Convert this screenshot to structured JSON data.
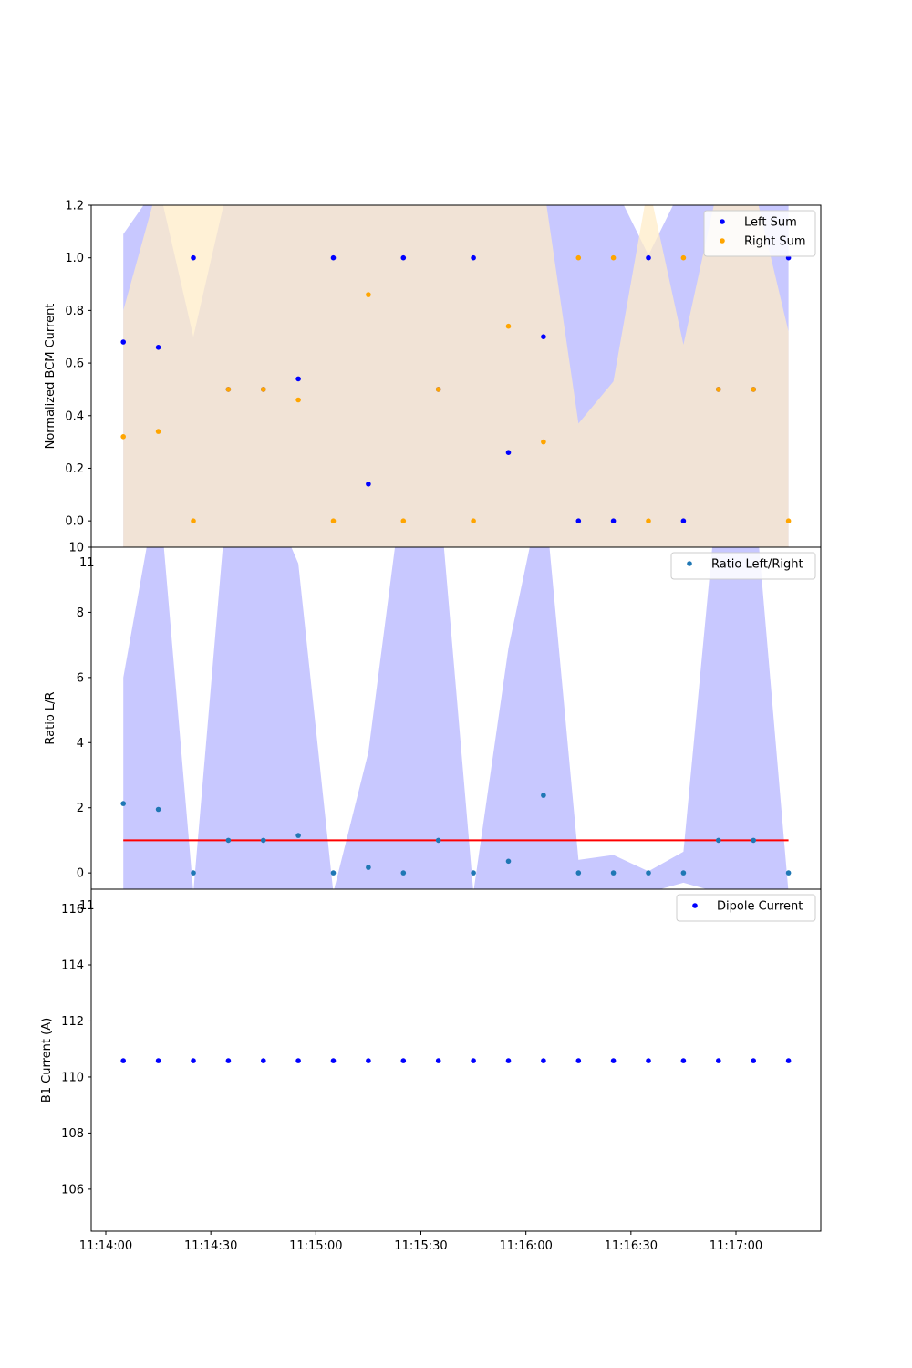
{
  "chart_data": [
    {
      "type": "scatter",
      "ylabel": "Normalized BCM Current",
      "ylim": [
        -0.1,
        1.2
      ],
      "yticks": [
        "0.0",
        "0.2",
        "0.4",
        "0.6",
        "0.8",
        "1.0",
        "1.2"
      ],
      "ytick_values": [
        0.0,
        0.2,
        0.4,
        0.6,
        0.8,
        1.0,
        1.2
      ],
      "legend_position": "top-right",
      "x": [
        "11:14:05",
        "11:14:15",
        "11:14:25",
        "11:14:35",
        "11:14:45",
        "11:14:55",
        "11:15:05",
        "11:15:15",
        "11:15:25",
        "11:15:35",
        "11:15:45",
        "11:15:55",
        "11:16:05",
        "11:16:15",
        "11:16:25",
        "11:16:35",
        "11:16:45",
        "11:16:55",
        "11:17:05",
        "11:17:15"
      ],
      "series": [
        {
          "name": "Left Sum",
          "color": "#0000ff",
          "band_color": "#c8c8ff",
          "values": [
            0.68,
            0.66,
            1.0,
            0.5,
            0.5,
            0.54,
            1.0,
            0.14,
            1.0,
            0.5,
            1.0,
            0.26,
            0.7,
            0.0,
            0.0,
            1.0,
            0.0,
            0.5,
            0.5,
            1.0
          ],
          "band_upper": [
            1.09,
            1.28,
            0.7,
            1.28,
            1.28,
            1.28,
            1.28,
            1.28,
            1.28,
            1.28,
            1.28,
            1.28,
            1.28,
            1.28,
            1.28,
            1.01,
            1.28,
            1.28,
            1.28,
            1.28
          ],
          "band_lower": [
            -0.2,
            -0.2,
            -0.2,
            -0.2,
            -0.2,
            -0.2,
            -0.2,
            -0.2,
            -0.2,
            -0.2,
            -0.2,
            -0.2,
            -0.2,
            -0.2,
            -0.2,
            -0.2,
            -0.2,
            -0.2,
            -0.2,
            -0.2
          ]
        },
        {
          "name": "Right Sum",
          "color": "#ffa500",
          "band_color": "#ffecc8",
          "values": [
            0.32,
            0.34,
            0.0,
            0.5,
            0.5,
            0.46,
            0.0,
            0.86,
            0.0,
            0.5,
            0.0,
            0.74,
            0.3,
            1.0,
            1.0,
            0.0,
            1.0,
            0.5,
            0.5,
            0.0
          ],
          "band_upper": [
            0.8,
            1.28,
            1.28,
            1.28,
            1.28,
            1.28,
            1.28,
            1.28,
            1.28,
            1.28,
            1.28,
            1.28,
            1.28,
            0.37,
            0.53,
            1.28,
            0.67,
            1.28,
            1.28,
            0.72
          ],
          "band_lower": [
            -0.2,
            -0.2,
            -0.2,
            -0.2,
            -0.2,
            -0.2,
            -0.2,
            -0.2,
            -0.2,
            -0.2,
            -0.2,
            -0.2,
            -0.2,
            -0.2,
            -0.2,
            -0.2,
            -0.2,
            -0.2,
            -0.2,
            -0.2
          ]
        }
      ]
    },
    {
      "type": "scatter",
      "ylabel": "Ratio L/R",
      "ylim": [
        -0.5,
        10
      ],
      "yticks": [
        "0",
        "2",
        "4",
        "6",
        "8",
        "10"
      ],
      "ytick_values": [
        0,
        2,
        4,
        6,
        8,
        10
      ],
      "legend_position": "top-right",
      "x": [
        "11:14:05",
        "11:14:15",
        "11:14:25",
        "11:14:35",
        "11:14:45",
        "11:14:55",
        "11:15:05",
        "11:15:15",
        "11:15:25",
        "11:15:35",
        "11:15:45",
        "11:15:55",
        "11:16:05",
        "11:16:15",
        "11:16:25",
        "11:16:35",
        "11:16:45",
        "11:16:55",
        "11:17:05",
        "11:17:15"
      ],
      "reference_line": {
        "value": 1.0,
        "color": "#ff0000"
      },
      "series": [
        {
          "name": "Ratio Left/Right",
          "color": "#1f77b4",
          "band_color": "#c8c8ff",
          "values": [
            2.13,
            1.95,
            0.0,
            1.0,
            1.0,
            1.15,
            0.0,
            0.17,
            0.0,
            1.0,
            0.0,
            0.36,
            2.38,
            0.0,
            0.0,
            0.0,
            0.0,
            1.0,
            1.0,
            0.0
          ],
          "band_upper": [
            6.0,
            12.0,
            -0.6,
            12.0,
            12.0,
            9.5,
            -0.6,
            3.7,
            12.0,
            12.0,
            -0.6,
            6.9,
            12.0,
            0.4,
            0.55,
            0.05,
            0.65,
            12.0,
            12.0,
            -0.6
          ],
          "band_lower": [
            -0.6,
            -0.6,
            -0.6,
            -0.6,
            -0.6,
            -0.6,
            -0.6,
            -0.6,
            -0.6,
            -0.6,
            -0.6,
            -0.6,
            -0.6,
            -0.6,
            -0.6,
            -0.6,
            -0.3,
            -0.6,
            -0.6,
            -0.6
          ]
        }
      ]
    },
    {
      "type": "scatter",
      "ylabel": "B1 Current (A)",
      "ylim": [
        104.5,
        116.7
      ],
      "yticks": [
        "106",
        "108",
        "110",
        "112",
        "114",
        "116"
      ],
      "ytick_values": [
        106,
        108,
        110,
        112,
        114,
        116
      ],
      "legend_position": "top-right",
      "xlabel": "",
      "xticks": [
        "11:14:00",
        "11:14:30",
        "11:15:00",
        "11:15:30",
        "11:16:00",
        "11:16:30",
        "11:17:00"
      ],
      "x": [
        "11:14:05",
        "11:14:15",
        "11:14:25",
        "11:14:35",
        "11:14:45",
        "11:14:55",
        "11:15:05",
        "11:15:15",
        "11:15:25",
        "11:15:35",
        "11:15:45",
        "11:15:55",
        "11:16:05",
        "11:16:15",
        "11:16:25",
        "11:16:35",
        "11:16:45",
        "11:16:55",
        "11:17:05",
        "11:17:15"
      ],
      "series": [
        {
          "name": "Dipole Current",
          "color": "#0000ff",
          "values": [
            110.58,
            110.58,
            110.58,
            110.58,
            110.58,
            110.58,
            110.58,
            110.58,
            110.58,
            110.58,
            110.58,
            110.58,
            110.58,
            110.58,
            110.58,
            110.58,
            110.58,
            110.58,
            110.58,
            110.58
          ]
        }
      ]
    }
  ],
  "overlap_tick_fragment": "11"
}
